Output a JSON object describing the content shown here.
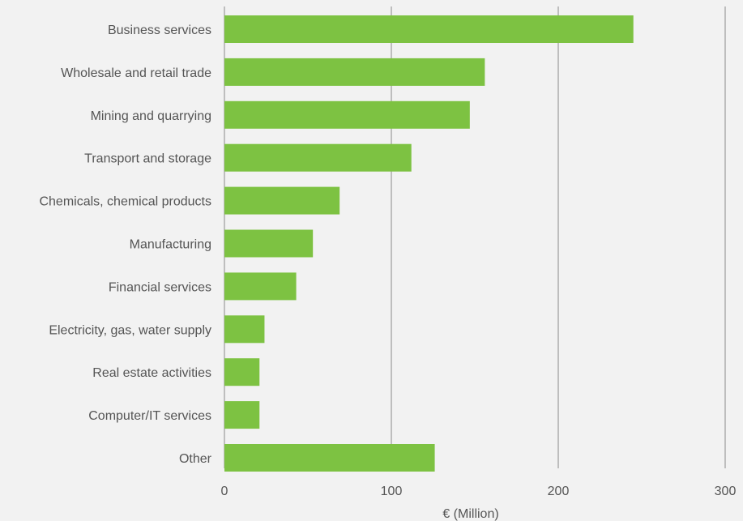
{
  "chart_data": {
    "type": "bar",
    "orientation": "horizontal",
    "categories": [
      "Business services",
      "Wholesale and retail trade",
      "Mining and quarrying",
      "Transport and storage",
      "Chemicals, chemical products",
      "Manufacturing",
      "Financial services",
      "Electricity, gas, water supply",
      "Real estate activities",
      "Computer/IT services",
      "Other"
    ],
    "values": [
      245,
      156,
      147,
      112,
      69,
      53,
      43,
      24,
      21,
      21,
      126
    ],
    "xlabel": "€ (Million)",
    "ylabel": "",
    "xlim": [
      0,
      300
    ],
    "xticks": [
      "0",
      "100",
      "200",
      "300"
    ],
    "grid": "vertical",
    "bar_color": "#7dc242",
    "grid_color": "#8a8a8a",
    "background_color": "#f2f2f2",
    "text_color": "#555555"
  }
}
